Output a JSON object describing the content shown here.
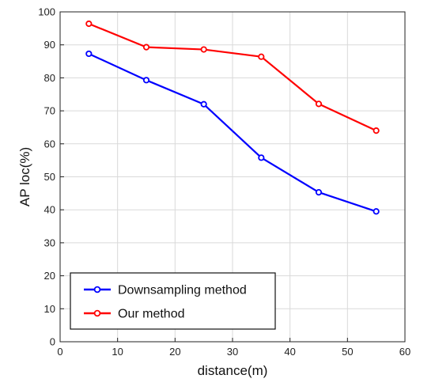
{
  "chart_data": {
    "type": "line",
    "title": "",
    "xlabel": "distance(m)",
    "ylabel": "AP loc(%)",
    "xlim": [
      0,
      60
    ],
    "ylim": [
      0,
      100
    ],
    "x_ticks": [
      0,
      10,
      20,
      30,
      40,
      50,
      60
    ],
    "y_ticks": [
      0,
      10,
      20,
      30,
      40,
      50,
      60,
      70,
      80,
      90,
      100
    ],
    "grid": true,
    "legend_position": "bottom-left",
    "x": [
      5,
      15,
      25,
      35,
      45,
      55
    ],
    "series": [
      {
        "name": "Downsampling method",
        "color": "#0000ff",
        "marker": "circle",
        "values": [
          87.3,
          79.3,
          72.0,
          55.8,
          45.3,
          39.5
        ]
      },
      {
        "name": "Our method",
        "color": "#ff0000",
        "marker": "circle",
        "values": [
          96.4,
          89.3,
          88.6,
          86.4,
          72.1,
          64.0
        ]
      }
    ]
  }
}
